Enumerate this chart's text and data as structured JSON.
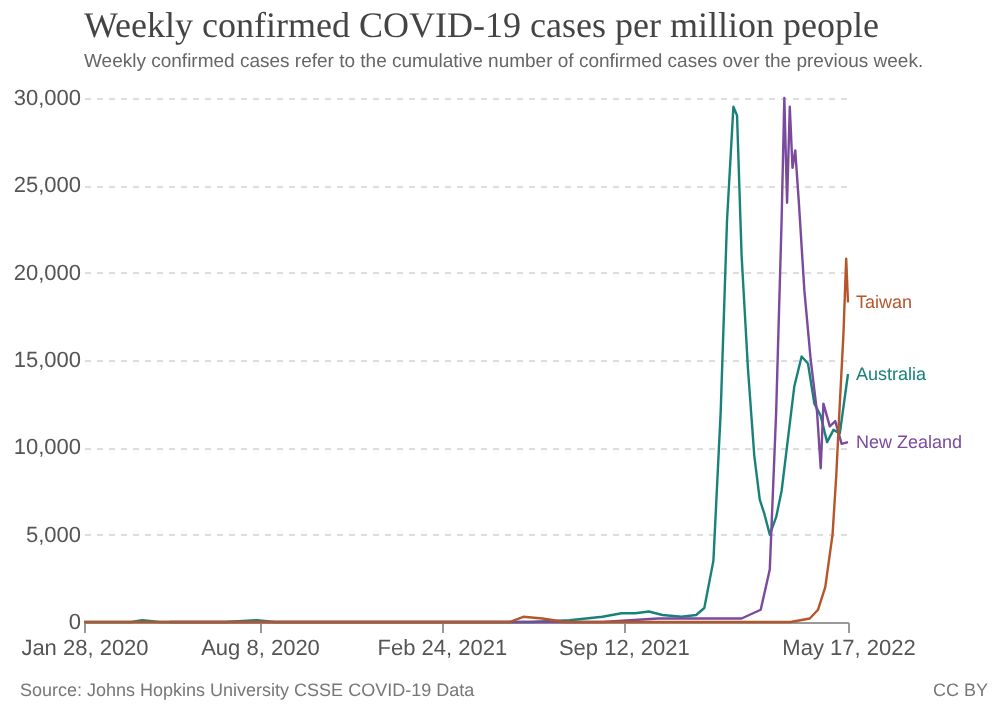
{
  "chart_data": {
    "type": "line",
    "title": "Weekly confirmed COVID-19 cases per million people",
    "subtitle": "Weekly confirmed cases refer to the cumulative number of confirmed cases over the previous week.",
    "xlim": [
      "2020-01-28",
      "2022-05-17"
    ],
    "xticks": [
      {
        "value": "2020-01-28",
        "label": "Jan 28, 2020"
      },
      {
        "value": "2020-08-08",
        "label": "Aug 8, 2020"
      },
      {
        "value": "2021-02-24",
        "label": "Feb 24, 2021"
      },
      {
        "value": "2021-09-12",
        "label": "Sep 12, 2021"
      },
      {
        "value": "2022-05-17",
        "label": "May 17, 2022"
      }
    ],
    "ylim": [
      0,
      30000
    ],
    "yticks": [
      0,
      {
        "value": 5000,
        "label": "5,000"
      },
      {
        "value": 10000,
        "label": "10,000"
      },
      {
        "value": 15000,
        "label": "15,000"
      },
      {
        "value": 20000,
        "label": "20,000"
      },
      {
        "value": 25000,
        "label": "25,000"
      },
      {
        "value": 30000,
        "label": "30,000"
      }
    ],
    "grid": "y",
    "line_style": "solid",
    "series": [
      {
        "name": "Australia",
        "color": "#18827a",
        "x": [
          "2020-01-28",
          "2020-03-20",
          "2020-04-01",
          "2020-04-20",
          "2020-07-01",
          "2020-08-05",
          "2020-08-25",
          "2020-10-01",
          "2021-01-01",
          "2021-06-01",
          "2021-07-15",
          "2021-08-20",
          "2021-09-10",
          "2021-09-25",
          "2021-10-10",
          "2021-10-25",
          "2021-11-15",
          "2021-12-01",
          "2021-12-10",
          "2021-12-20",
          "2021-12-28",
          "2022-01-04",
          "2022-01-11",
          "2022-01-15",
          "2022-01-20",
          "2022-01-27",
          "2022-02-03",
          "2022-02-09",
          "2022-02-14",
          "2022-02-20",
          "2022-02-27",
          "2022-03-05",
          "2022-03-12",
          "2022-03-19",
          "2022-03-27",
          "2022-04-03",
          "2022-04-10",
          "2022-04-17",
          "2022-04-24",
          "2022-05-01",
          "2022-05-08",
          "2022-05-17"
        ],
        "values": [
          0,
          0,
          100,
          0,
          0,
          100,
          0,
          0,
          0,
          0,
          100,
          300,
          500,
          500,
          600,
          400,
          300,
          400,
          800,
          3500,
          12000,
          23000,
          29500,
          29000,
          21000,
          14500,
          9500,
          7000,
          6200,
          5000,
          6000,
          7500,
          10500,
          13500,
          15200,
          14800,
          12500,
          11800,
          10300,
          11000,
          10800,
          14200
        ]
      },
      {
        "name": "New Zealand",
        "color": "#7a4b9c",
        "x": [
          "2020-05-01",
          "2021-08-20",
          "2021-10-20",
          "2021-12-01",
          "2022-01-20",
          "2022-02-10",
          "2022-02-20",
          "2022-02-27",
          "2022-03-05",
          "2022-03-08",
          "2022-03-11",
          "2022-03-14",
          "2022-03-17",
          "2022-03-20",
          "2022-03-24",
          "2022-03-30",
          "2022-04-06",
          "2022-04-13",
          "2022-04-17",
          "2022-04-20",
          "2022-04-27",
          "2022-05-03",
          "2022-05-10",
          "2022-05-17"
        ],
        "values": [
          0,
          0,
          200,
          200,
          200,
          700,
          3000,
          12000,
          23000,
          30000,
          24000,
          29500,
          26000,
          27000,
          24000,
          19000,
          15000,
          12000,
          8800,
          12500,
          11200,
          11500,
          10200,
          10300
        ]
      },
      {
        "name": "Taiwan",
        "color": "#b5552a",
        "x": [
          "2020-01-28",
          "2021-05-10",
          "2021-05-25",
          "2021-06-15",
          "2021-07-10",
          "2021-08-01",
          "2022-03-15",
          "2022-04-05",
          "2022-04-14",
          "2022-04-22",
          "2022-04-30",
          "2022-05-04",
          "2022-05-08",
          "2022-05-12",
          "2022-05-15",
          "2022-05-17"
        ],
        "values": [
          0,
          0,
          300,
          200,
          0,
          0,
          0,
          200,
          700,
          2000,
          5000,
          8300,
          12500,
          16500,
          20800,
          18300
        ]
      }
    ],
    "annotations": [
      "Source: Johns Hopkins University CSSE COVID-19 Data",
      "CC BY"
    ]
  }
}
